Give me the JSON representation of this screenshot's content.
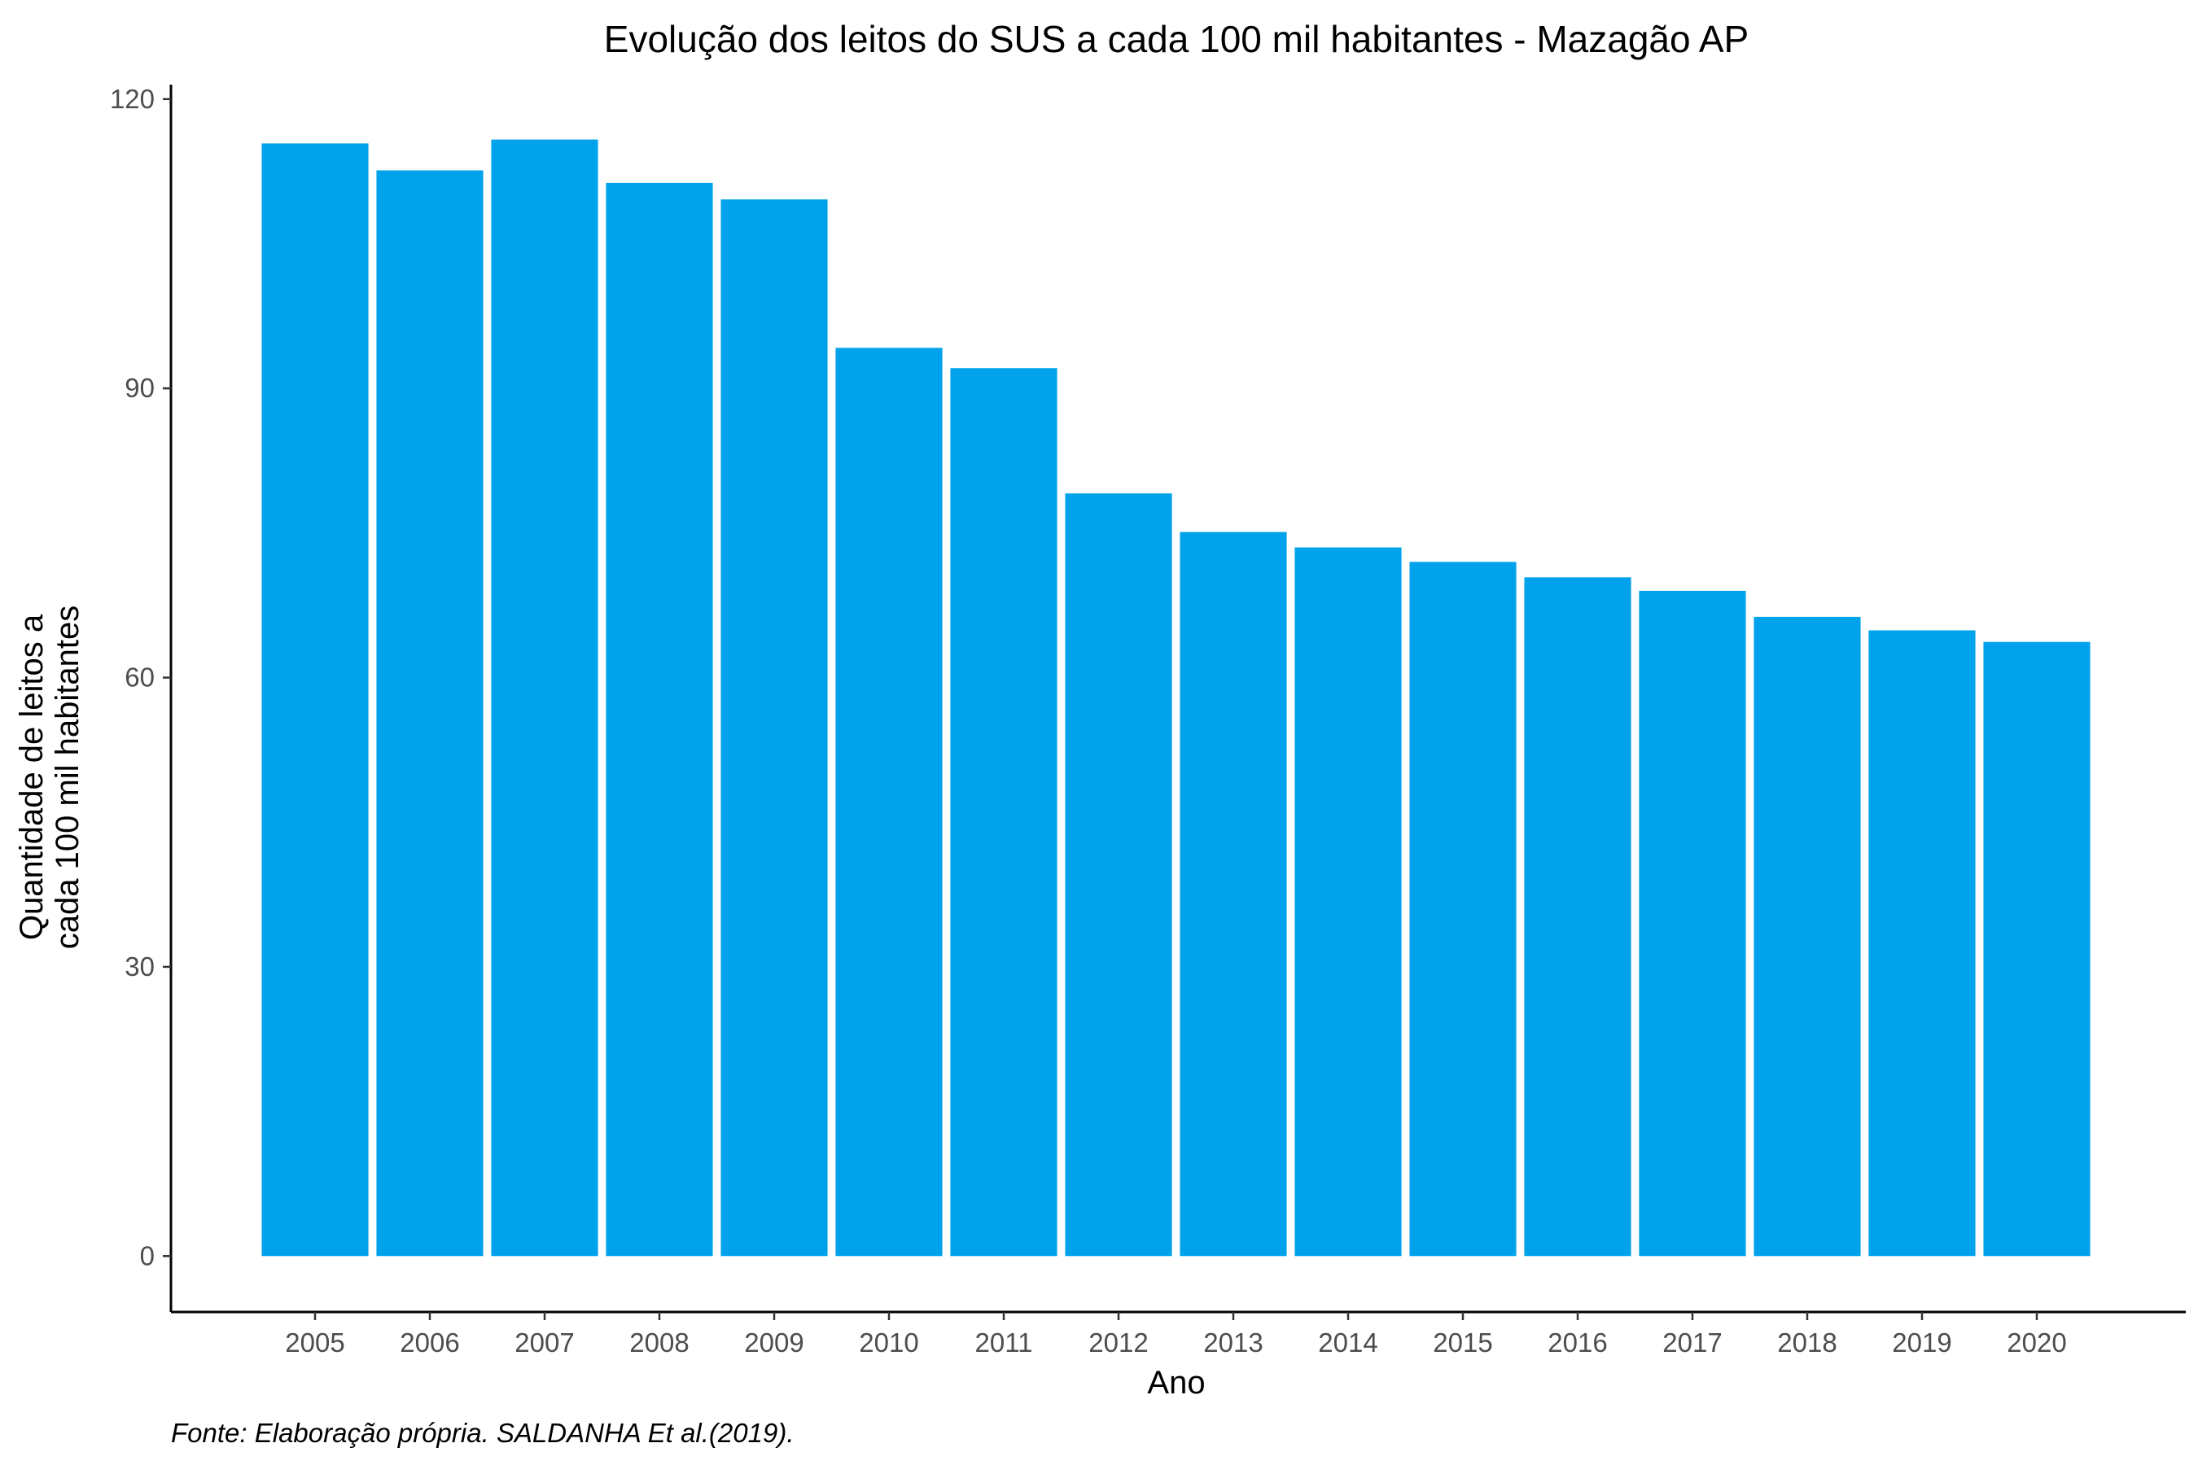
{
  "chart_data": {
    "type": "bar",
    "title": "Evolução dos leitos do SUS a cada 100 mil habitantes -  Mazagão AP",
    "xlabel": "Ano",
    "ylabel_lines": [
      "Quantidade de leitos a",
      "cada 100 mil habitantes"
    ],
    "caption": "Fonte: Elaboração própria. SALDANHA Et al.(2019).",
    "categories": [
      "2005",
      "2006",
      "2007",
      "2008",
      "2009",
      "2010",
      "2011",
      "2012",
      "2013",
      "2014",
      "2015",
      "2016",
      "2017",
      "2018",
      "2019",
      "2020"
    ],
    "values": [
      115.4,
      112.6,
      115.8,
      111.3,
      109.6,
      94.2,
      92.1,
      79.1,
      75.1,
      73.5,
      72.0,
      70.4,
      69.0,
      66.3,
      64.9,
      63.7
    ],
    "yticks": [
      0,
      30,
      60,
      90,
      120
    ],
    "ylim": [
      -5.8,
      121.5
    ],
    "grid": false,
    "bar_color": "#00A2EB",
    "axis_color": "#000000",
    "tick_label_color": "#4d4d4d"
  }
}
